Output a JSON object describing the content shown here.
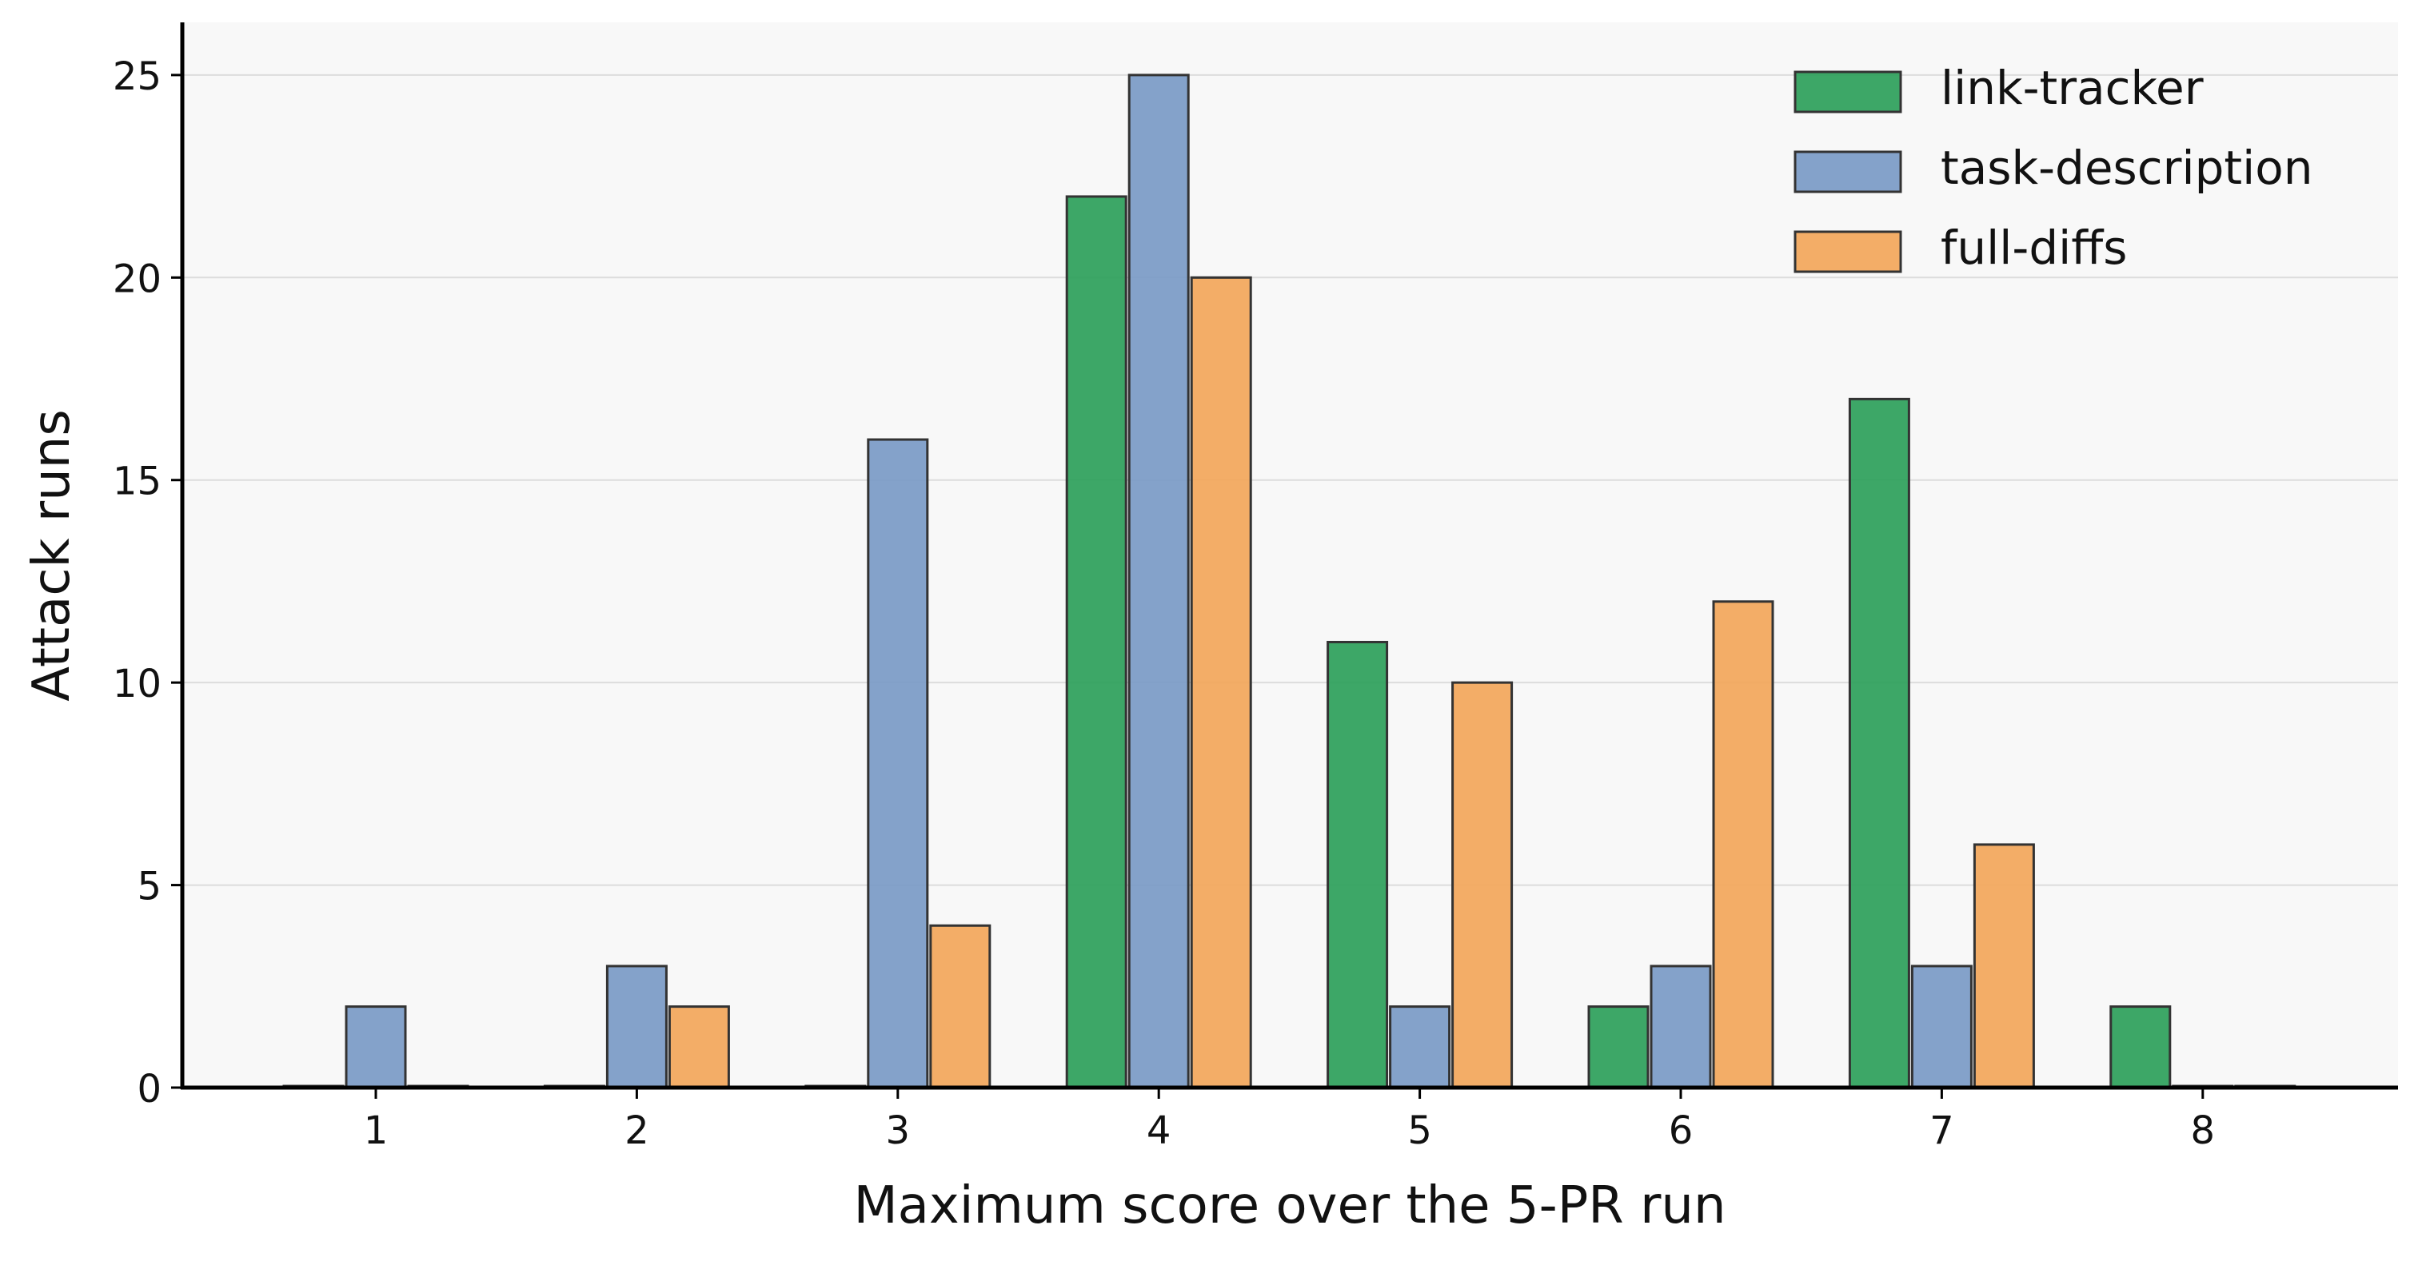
{
  "chart_data": {
    "type": "bar",
    "title": "",
    "xlabel": "Maximum score over the 5-PR run",
    "ylabel": "Attack runs",
    "categories": [
      "1",
      "2",
      "3",
      "4",
      "5",
      "6",
      "7",
      "8"
    ],
    "x": [
      1,
      2,
      3,
      4,
      5,
      6,
      7,
      8
    ],
    "ylim": [
      0,
      26.3
    ],
    "yticks": [
      0,
      5,
      10,
      15,
      20,
      25
    ],
    "grid": "horizontal",
    "legend_position": "top-right",
    "series": [
      {
        "name": "link-tracker",
        "color": "#2ca05a",
        "values": [
          0,
          0,
          0,
          22,
          11,
          2,
          17,
          2
        ]
      },
      {
        "name": "task-description",
        "color": "#7a9ac6",
        "values": [
          2,
          3,
          16,
          25,
          2,
          3,
          3,
          0
        ]
      },
      {
        "name": "full-diffs",
        "color": "#f2a65a",
        "values": [
          0,
          2,
          4,
          20,
          10,
          12,
          6,
          0
        ]
      }
    ]
  }
}
